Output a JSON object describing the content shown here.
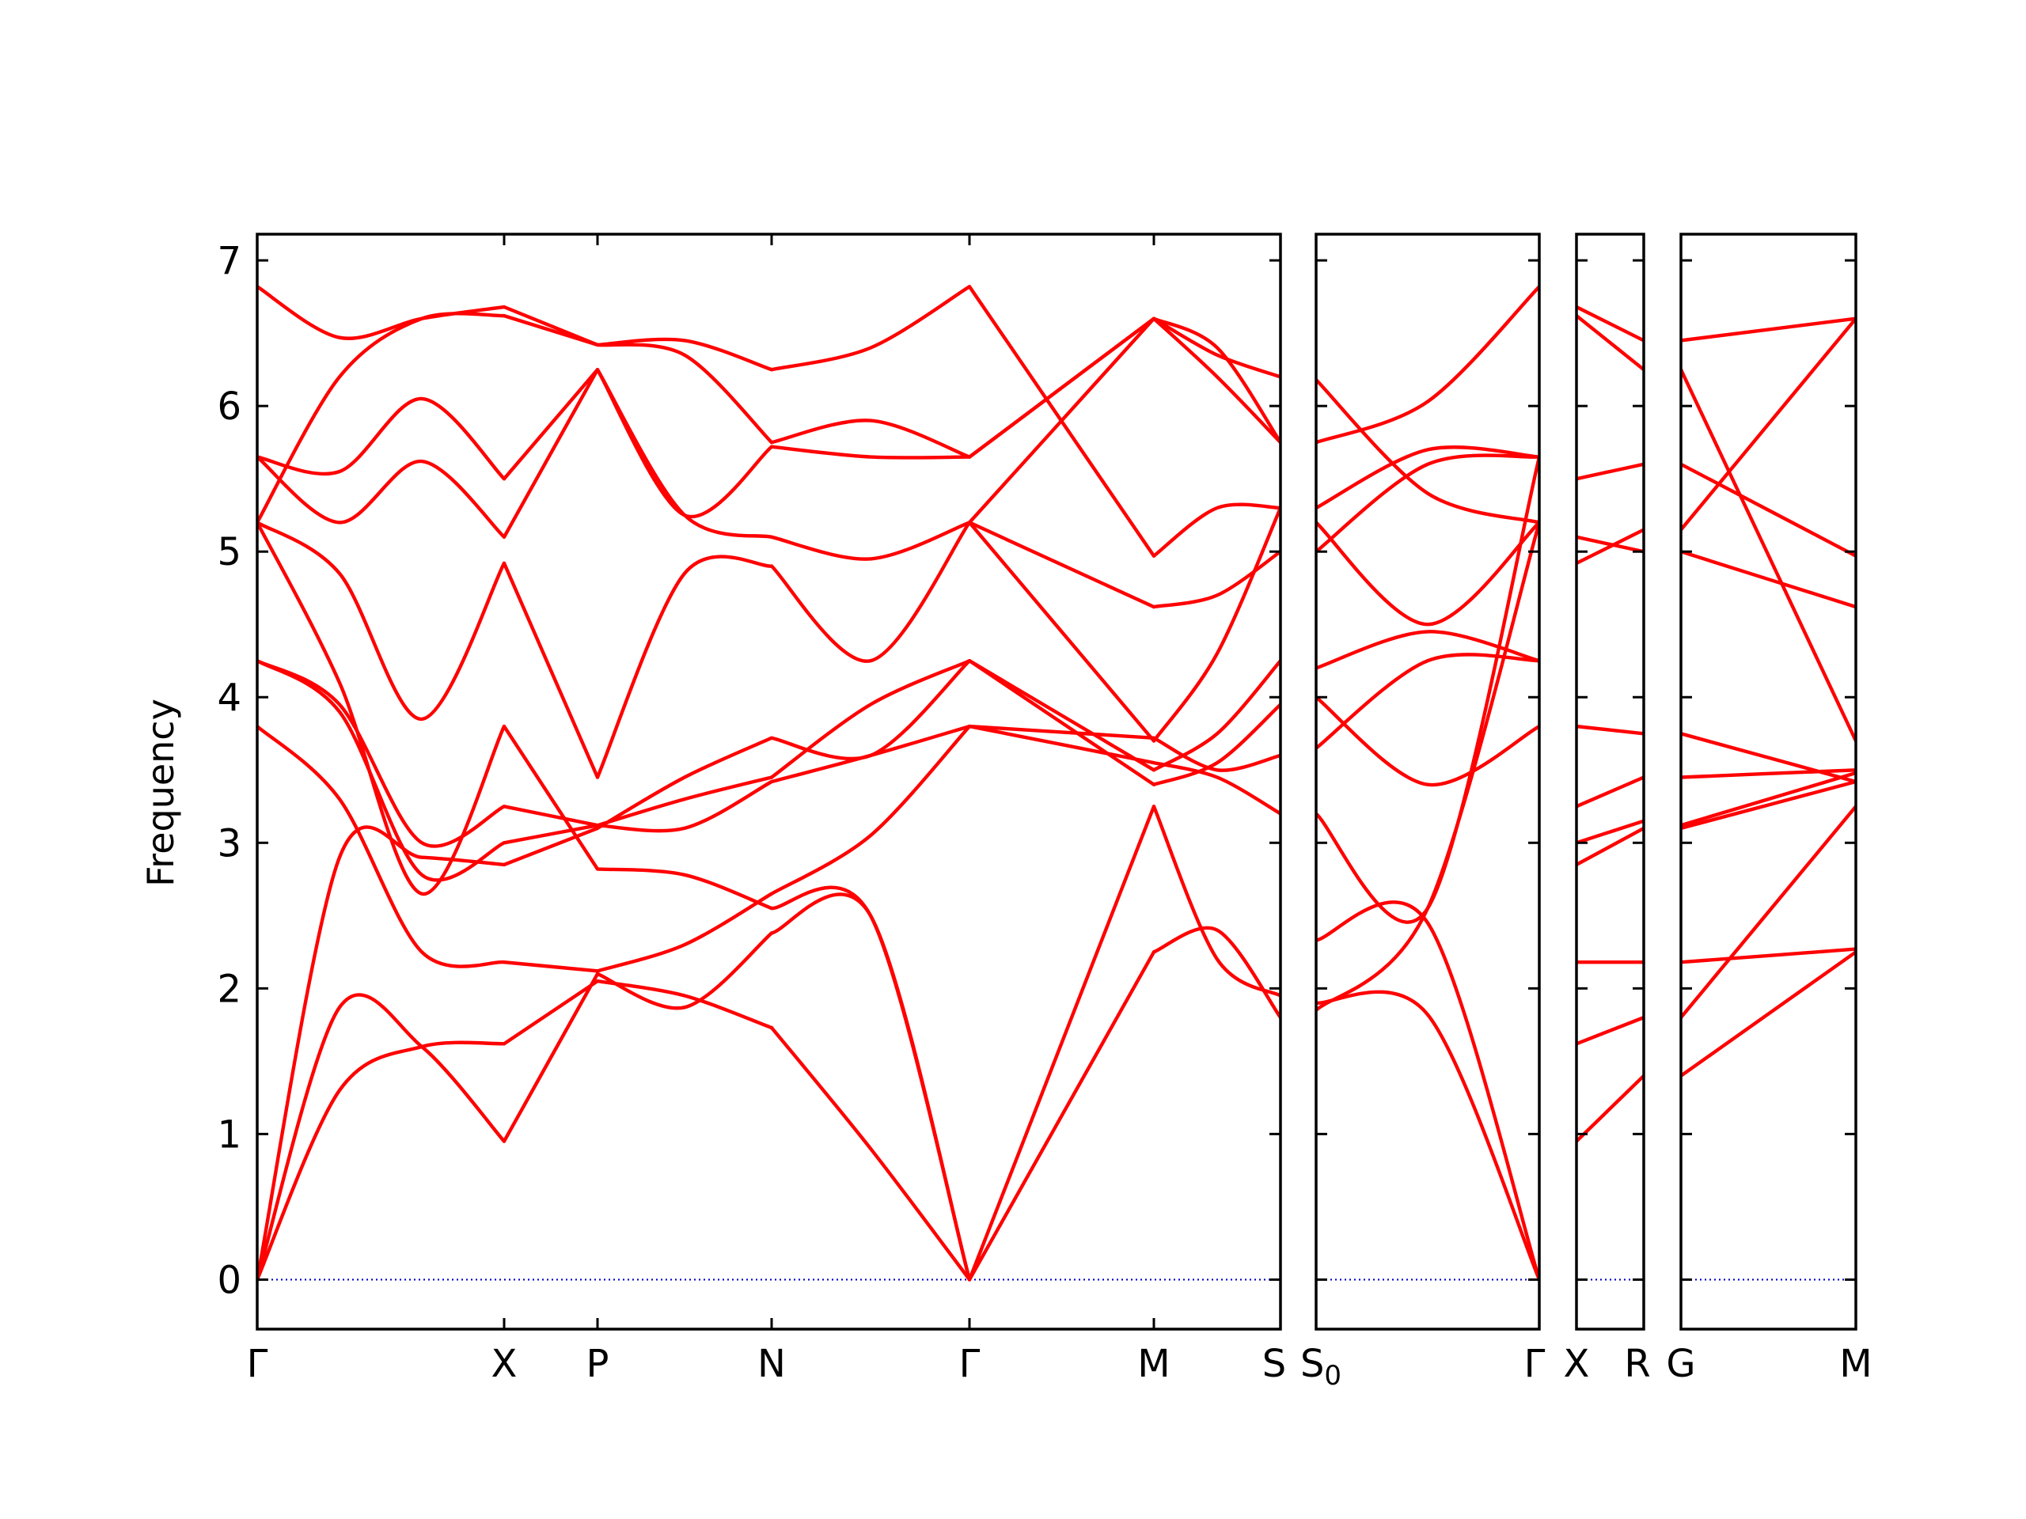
{
  "chart_data": {
    "type": "line",
    "title": "",
    "ylabel": "Frequency",
    "xlabel": "",
    "ylim": [
      -0.34,
      7.18
    ],
    "yticks": [
      0,
      1,
      2,
      3,
      4,
      5,
      6,
      7
    ],
    "grid": false,
    "legend": "none",
    "colors": {
      "bands": "#ff0000",
      "zero_line": "#0000cc",
      "frame": "#000000"
    },
    "high_symmetry_labels": [
      {
        "text": "Γ",
        "sub": ""
      },
      {
        "text": "X",
        "sub": ""
      },
      {
        "text": "P",
        "sub": ""
      },
      {
        "text": "N",
        "sub": ""
      },
      {
        "text": "Γ",
        "sub": ""
      },
      {
        "text": "M",
        "sub": ""
      },
      {
        "text": "S",
        "sub": ""
      },
      {
        "text": "S",
        "sub": "0"
      },
      {
        "text": "Γ",
        "sub": ""
      },
      {
        "text": "X",
        "sub": ""
      },
      {
        "text": "R",
        "sub": ""
      },
      {
        "text": "G",
        "sub": ""
      },
      {
        "text": "M",
        "sub": ""
      }
    ],
    "segments": [
      {
        "from": "Γ",
        "to": "X",
        "bands": [
          [
            0.0,
            1.3,
            1.6,
            1.62
          ],
          [
            0.0,
            1.87,
            1.6,
            0.95
          ],
          [
            0.0,
            2.9,
            2.9,
            2.85
          ],
          [
            3.8,
            3.3,
            2.25,
            2.18
          ],
          [
            4.25,
            3.9,
            2.78,
            3.0
          ],
          [
            4.25,
            3.95,
            3.0,
            3.25
          ],
          [
            5.2,
            4.1,
            2.65,
            3.8
          ],
          [
            5.2,
            4.85,
            3.85,
            4.92
          ],
          [
            5.65,
            5.2,
            5.62,
            5.1
          ],
          [
            5.65,
            5.55,
            6.05,
            5.5
          ],
          [
            5.2,
            6.2,
            6.6,
            6.62
          ],
          [
            6.82,
            6.47,
            6.6,
            6.68
          ]
        ]
      },
      {
        "from": "X",
        "to": "P",
        "bands": [
          [
            1.62,
            2.05
          ],
          [
            0.95,
            2.1
          ],
          [
            2.85,
            3.1
          ],
          [
            2.18,
            2.12
          ],
          [
            3.0,
            3.12
          ],
          [
            3.25,
            3.12
          ],
          [
            3.8,
            2.82
          ],
          [
            4.92,
            3.45
          ],
          [
            5.1,
            6.25
          ],
          [
            5.5,
            6.25
          ],
          [
            6.62,
            6.42
          ],
          [
            6.68,
            6.42
          ]
        ]
      },
      {
        "from": "P",
        "to": "N",
        "bands": [
          [
            2.05,
            1.95,
            1.73
          ],
          [
            2.1,
            1.87,
            2.38
          ],
          [
            3.1,
            3.45,
            3.72
          ],
          [
            2.12,
            2.3,
            2.65
          ],
          [
            3.12,
            3.3,
            3.45
          ],
          [
            3.12,
            3.1,
            3.42
          ],
          [
            2.82,
            2.78,
            2.55
          ],
          [
            3.45,
            4.85,
            4.9
          ],
          [
            6.25,
            5.25,
            5.72
          ],
          [
            6.25,
            5.25,
            5.1
          ],
          [
            6.42,
            6.35,
            5.75
          ],
          [
            6.42,
            6.45,
            6.25
          ]
        ]
      },
      {
        "from": "N",
        "to": "Γ",
        "bands": [
          [
            1.73,
            0.9,
            0.0
          ],
          [
            2.38,
            2.5,
            0.0
          ],
          [
            3.72,
            3.6,
            4.25
          ],
          [
            2.65,
            3.05,
            3.8
          ],
          [
            3.45,
            3.95,
            4.25
          ],
          [
            3.42,
            3.6,
            3.8
          ],
          [
            2.55,
            2.5,
            0.0
          ],
          [
            4.9,
            4.25,
            5.2
          ],
          [
            5.72,
            5.65,
            5.65
          ],
          [
            5.1,
            4.95,
            5.2
          ],
          [
            5.75,
            5.9,
            5.65
          ],
          [
            6.25,
            6.4,
            6.82
          ]
        ]
      },
      {
        "from": "Γ",
        "to": "M",
        "bands": [
          [
            0.0,
            2.25
          ],
          [
            0.0,
            3.25
          ],
          [
            4.25,
            3.4
          ],
          [
            3.8,
            3.55
          ],
          [
            4.25,
            3.5
          ],
          [
            3.8,
            3.72
          ],
          [
            5.2,
            4.62
          ],
          [
            5.2,
            3.7
          ],
          [
            5.65,
            6.6
          ],
          [
            5.2,
            6.6
          ],
          [
            5.65,
            6.6
          ],
          [
            6.82,
            4.97
          ]
        ]
      },
      {
        "from": "M",
        "to": "S",
        "bands": [
          [
            2.25,
            2.4,
            1.8
          ],
          [
            3.25,
            2.2,
            1.95
          ],
          [
            3.4,
            3.55,
            3.95
          ],
          [
            3.55,
            3.45,
            3.2
          ],
          [
            3.5,
            3.75,
            4.25
          ],
          [
            3.72,
            3.5,
            3.6
          ],
          [
            4.62,
            4.7,
            5.0
          ],
          [
            3.7,
            4.3,
            5.3
          ],
          [
            6.6,
            6.2,
            5.75
          ],
          [
            6.6,
            6.35,
            6.2
          ],
          [
            6.6,
            6.4,
            5.75
          ],
          [
            4.97,
            5.3,
            5.3
          ]
        ]
      },
      {
        "from": "S0",
        "to": "Γ",
        "bands": [
          [
            1.9,
            1.82,
            0.0
          ],
          [
            2.33,
            2.45,
            0.0
          ],
          [
            4.0,
            3.4,
            3.8
          ],
          [
            3.65,
            4.25,
            4.25
          ],
          [
            1.85,
            2.55,
            5.2
          ],
          [
            3.2,
            2.55,
            5.65
          ],
          [
            5.0,
            5.6,
            5.65
          ],
          [
            4.2,
            4.45,
            4.25
          ],
          [
            5.75,
            6.03,
            6.82
          ],
          [
            5.3,
            5.7,
            5.65
          ],
          [
            6.18,
            5.4,
            5.2
          ],
          [
            5.2,
            4.5,
            5.2
          ]
        ]
      },
      {
        "from": "X",
        "to": "R",
        "bands": [
          [
            0.95,
            1.4
          ],
          [
            1.62,
            1.8
          ],
          [
            2.18,
            2.18
          ],
          [
            2.85,
            3.1
          ],
          [
            3.0,
            3.15
          ],
          [
            3.25,
            3.45
          ],
          [
            3.8,
            3.75
          ],
          [
            4.92,
            5.15
          ],
          [
            5.1,
            5.0
          ],
          [
            5.5,
            5.6
          ],
          [
            6.62,
            6.25
          ],
          [
            6.68,
            6.45
          ]
        ]
      },
      {
        "from": "G",
        "to": "M",
        "bands": [
          [
            1.4,
            2.25
          ],
          [
            1.8,
            3.25
          ],
          [
            2.18,
            2.27
          ],
          [
            3.1,
            3.42
          ],
          [
            3.12,
            3.48
          ],
          [
            3.45,
            3.5
          ],
          [
            3.75,
            3.42
          ],
          [
            5.0,
            4.62
          ],
          [
            5.15,
            6.6
          ],
          [
            5.6,
            4.97
          ],
          [
            6.25,
            3.7
          ],
          [
            6.45,
            6.6
          ]
        ]
      }
    ]
  }
}
